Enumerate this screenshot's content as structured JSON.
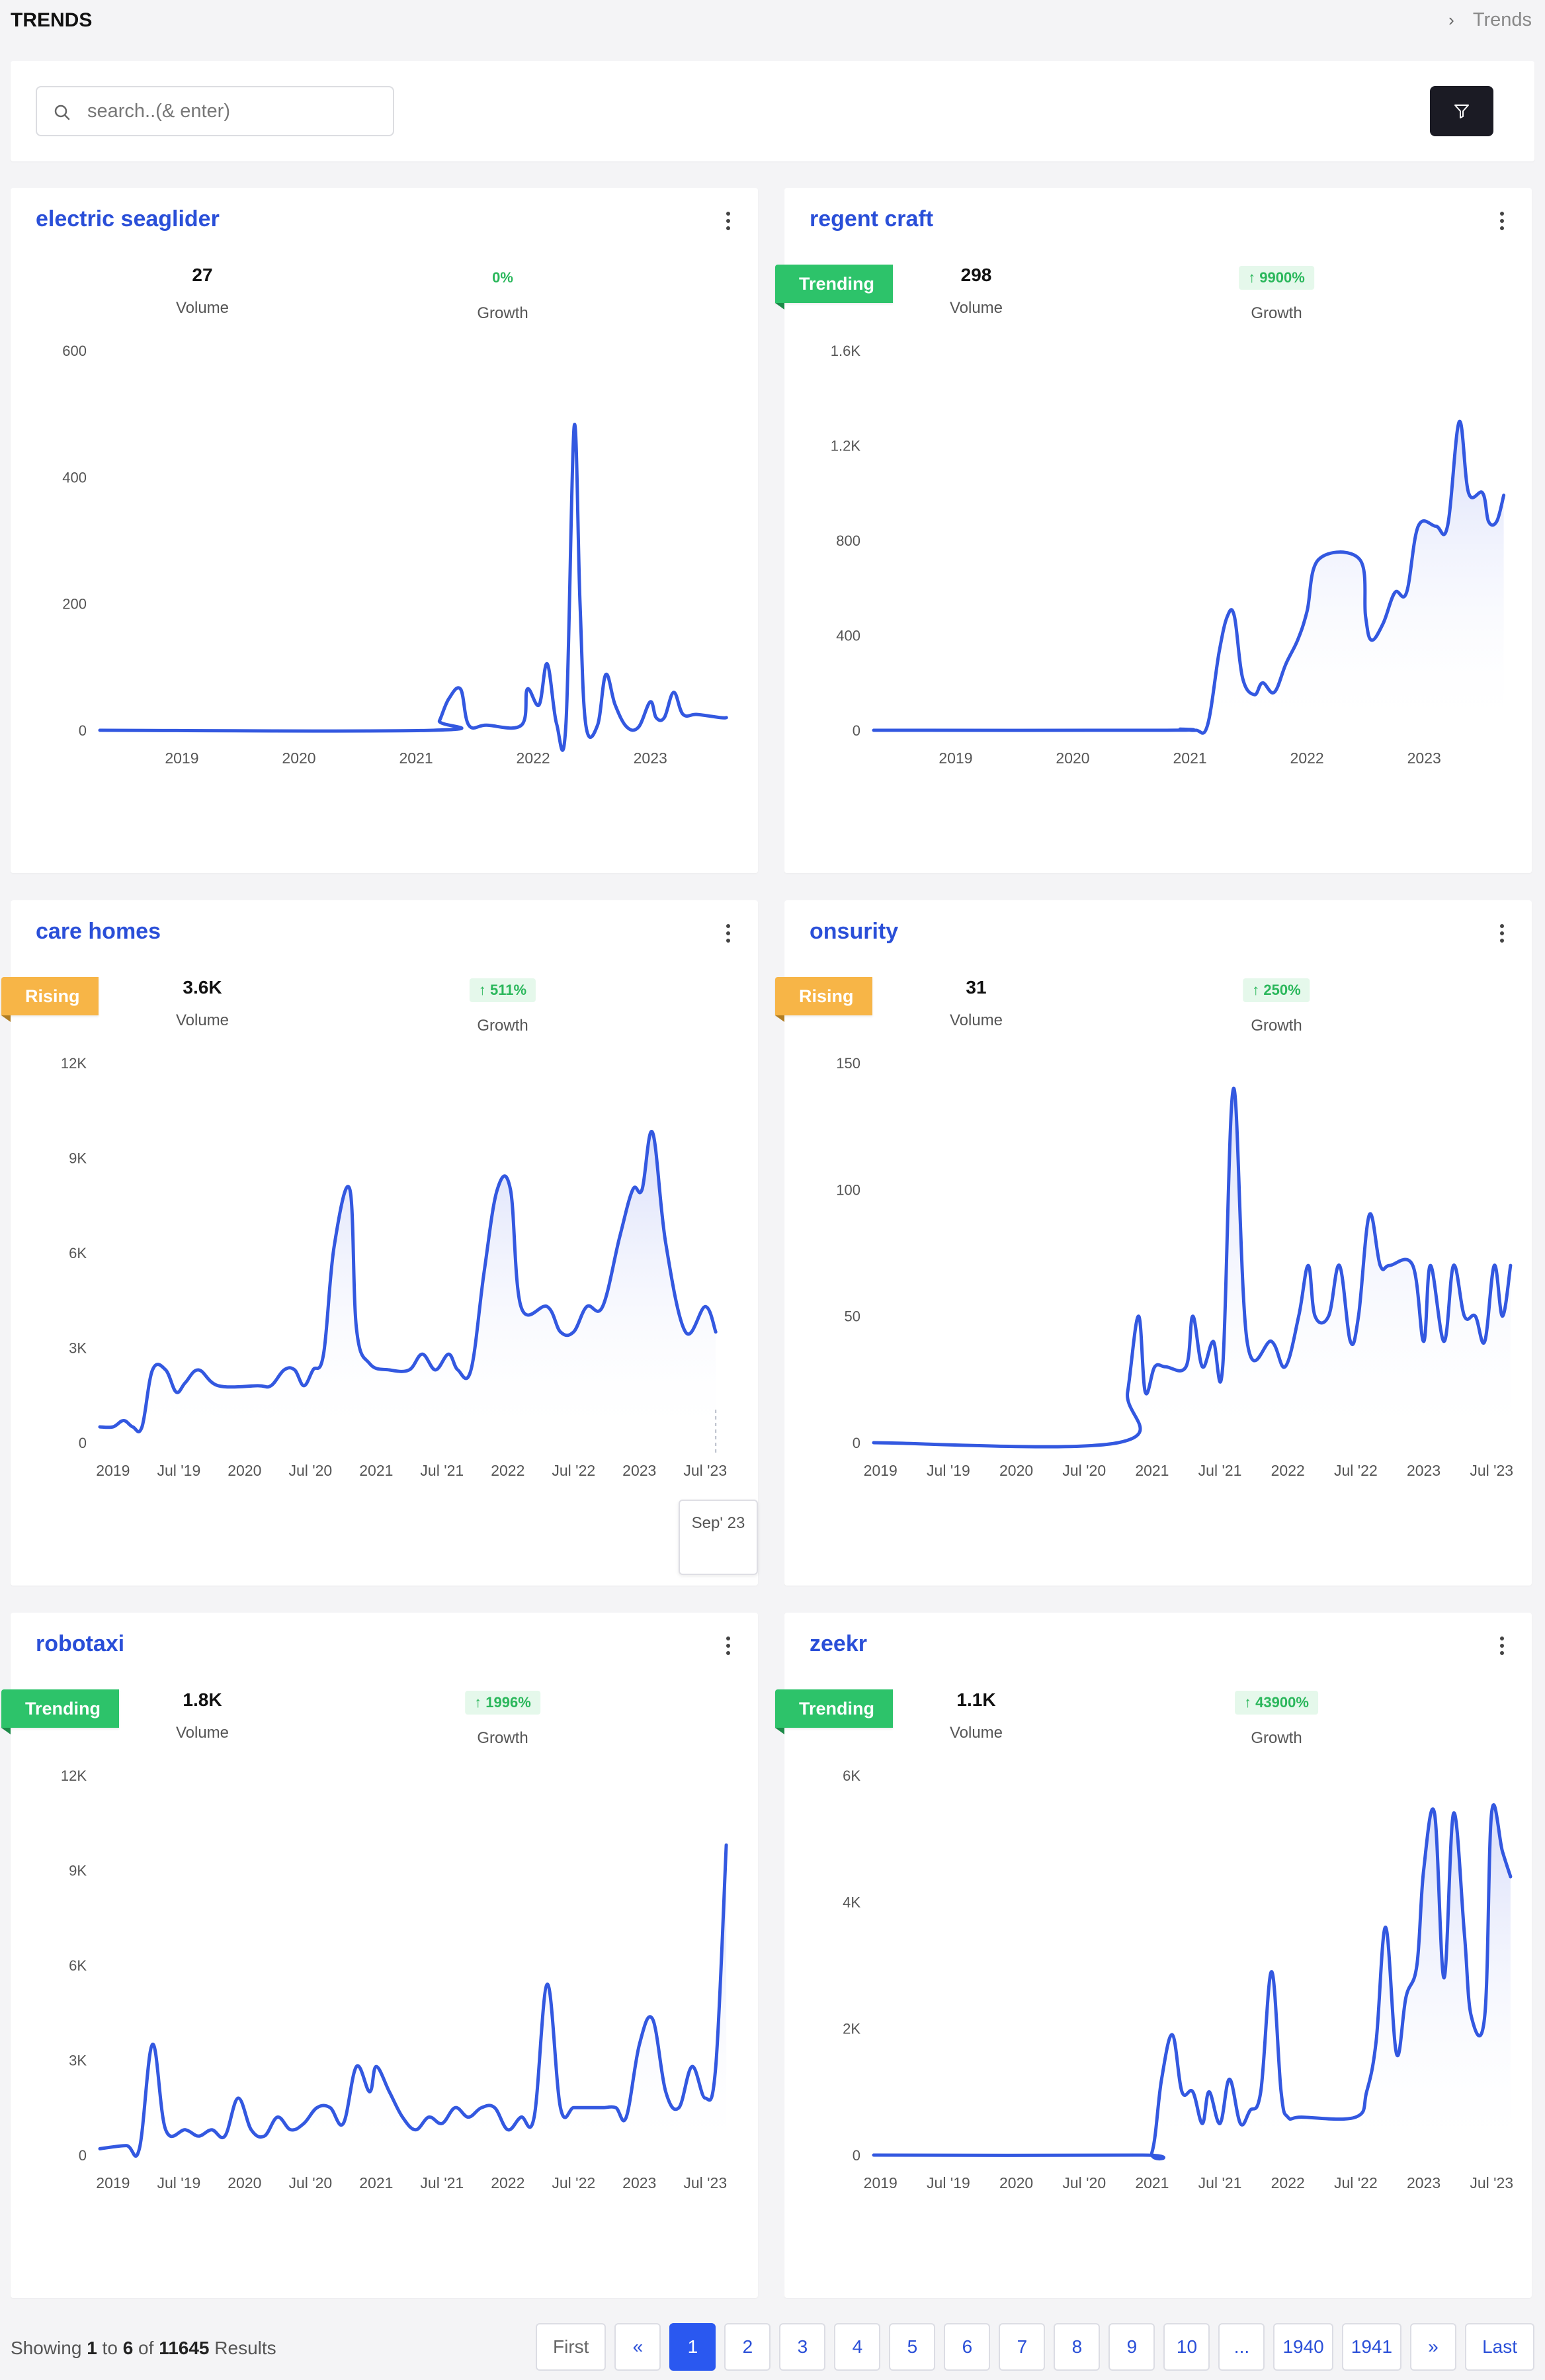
{
  "header": {
    "title": "TRENDS",
    "breadcrumb": "Trends"
  },
  "search": {
    "placeholder": "search..(& enter)",
    "value": ""
  },
  "cards": [
    {
      "title": "electric seaglider",
      "badge": "",
      "volume": "27",
      "volume_label": "Volume",
      "growth": "0%",
      "growth_pill": false,
      "growth_label": "Growth",
      "chart_data": {
        "type": "line",
        "ylim": [
          0,
          600
        ],
        "y_ticks": [
          0,
          200,
          400,
          600
        ],
        "y_tick_labels": [
          "0",
          "200",
          "400",
          "600"
        ],
        "xlim": [
          2018.3,
          2023.75
        ],
        "x_ticks": [
          2019,
          2020,
          2021,
          2022,
          2023
        ],
        "x_tick_labels": [
          "2019",
          "2020",
          "2021",
          "2022",
          "2023"
        ],
        "area": false,
        "x": [
          2018.3,
          2021.15,
          2021.2,
          2021.28,
          2021.38,
          2021.45,
          2021.6,
          2021.9,
          2021.95,
          2022.05,
          2022.12,
          2022.2,
          2022.28,
          2022.35,
          2022.4,
          2022.45,
          2022.55,
          2022.62,
          2022.7,
          2022.8,
          2022.9,
          2023.0,
          2023.05,
          2023.12,
          2023.2,
          2023.28,
          2023.4,
          2023.6,
          2023.65
        ],
        "y": [
          0,
          0,
          15,
          50,
          65,
          8,
          8,
          8,
          65,
          40,
          105,
          10,
          10,
          480,
          200,
          8,
          8,
          88,
          40,
          5,
          5,
          45,
          20,
          20,
          60,
          25,
          25,
          20,
          20
        ]
      }
    },
    {
      "title": "regent craft",
      "badge": "Trending",
      "volume": "298",
      "volume_label": "Volume",
      "growth": "↑ 9900%",
      "growth_pill": true,
      "growth_label": "Growth",
      "chart_data": {
        "type": "line",
        "ylim": [
          0,
          1600
        ],
        "y_ticks": [
          0,
          400,
          800,
          1200,
          1600
        ],
        "y_tick_labels": [
          "0",
          "400",
          "800",
          "1.2K",
          "1.6K"
        ],
        "xlim": [
          2018.3,
          2023.75
        ],
        "x_ticks": [
          2019,
          2020,
          2021,
          2022,
          2023
        ],
        "x_tick_labels": [
          "2019",
          "2020",
          "2021",
          "2022",
          "2023"
        ],
        "area": true,
        "x": [
          2018.3,
          2020.8,
          2020.92,
          2021.05,
          2021.15,
          2021.25,
          2021.32,
          2021.38,
          2021.45,
          2021.55,
          2021.62,
          2021.72,
          2021.82,
          2021.92,
          2022.0,
          2022.1,
          2022.45,
          2022.5,
          2022.55,
          2022.65,
          2022.75,
          2022.85,
          2022.95,
          2023.1,
          2023.2,
          2023.3,
          2023.38,
          2023.5,
          2023.55,
          2023.62,
          2023.68
        ],
        "y": [
          0,
          0,
          5,
          0,
          20,
          330,
          480,
          480,
          220,
          150,
          200,
          160,
          280,
          380,
          500,
          720,
          720,
          480,
          380,
          450,
          580,
          580,
          860,
          860,
          860,
          1300,
          1000,
          1000,
          880,
          880,
          990
        ]
      }
    },
    {
      "title": "care homes",
      "badge": "Rising",
      "volume": "3.6K",
      "volume_label": "Volume",
      "growth": "↑ 511%",
      "growth_pill": true,
      "growth_label": "Growth",
      "tooltip": "Sep' 23",
      "chart_data": {
        "type": "line",
        "ylim": [
          0,
          12000
        ],
        "y_ticks": [
          0,
          3000,
          6000,
          9000,
          12000
        ],
        "y_tick_labels": [
          "0",
          "3K",
          "6K",
          "9K",
          "12K"
        ],
        "xlim": [
          2018.9,
          2023.75
        ],
        "x_ticks": [
          2019,
          2019.5,
          2020,
          2020.5,
          2021,
          2021.5,
          2022,
          2022.5,
          2023,
          2023.5
        ],
        "x_tick_labels": [
          "2019",
          "Jul '19",
          "2020",
          "Jul '20",
          "2021",
          "Jul '21",
          "2022",
          "Jul '22",
          "2023",
          "Jul '23"
        ],
        "area": true,
        "x": [
          2018.9,
          2019.0,
          2019.08,
          2019.15,
          2019.22,
          2019.3,
          2019.4,
          2019.48,
          2019.55,
          2019.65,
          2019.8,
          2020.1,
          2020.2,
          2020.3,
          2020.38,
          2020.45,
          2020.52,
          2020.6,
          2020.68,
          2020.8,
          2020.85,
          2020.95,
          2021.1,
          2021.25,
          2021.35,
          2021.45,
          2021.55,
          2021.62,
          2021.72,
          2021.82,
          2021.92,
          2022.02,
          2022.1,
          2022.3,
          2022.4,
          2022.5,
          2022.6,
          2022.72,
          2022.85,
          2022.95,
          2023.02,
          2023.1,
          2023.2,
          2023.35,
          2023.5,
          2023.58
        ],
        "y": [
          500,
          500,
          700,
          500,
          500,
          2300,
          2300,
          1600,
          1900,
          2300,
          1800,
          1800,
          1800,
          2300,
          2300,
          1800,
          2300,
          2800,
          6200,
          8000,
          3600,
          2500,
          2300,
          2300,
          2800,
          2300,
          2800,
          2300,
          2300,
          5400,
          8000,
          8000,
          4300,
          4300,
          3500,
          3500,
          4300,
          4300,
          6500,
          8000,
          8000,
          9800,
          6300,
          3500,
          4300,
          3500
        ]
      }
    },
    {
      "title": "onsurity",
      "badge": "Rising",
      "volume": "31",
      "volume_label": "Volume",
      "growth": "↑ 250%",
      "growth_pill": true,
      "growth_label": "Growth",
      "chart_data": {
        "type": "line",
        "ylim": [
          0,
          150
        ],
        "y_ticks": [
          0,
          50,
          100,
          150
        ],
        "y_tick_labels": [
          "0",
          "50",
          "100",
          "150"
        ],
        "xlim": [
          2018.95,
          2023.65
        ],
        "x_ticks": [
          2019,
          2019.5,
          2020,
          2020.5,
          2021,
          2021.5,
          2022,
          2022.5,
          2023,
          2023.5
        ],
        "x_tick_labels": [
          "2019",
          "Jul '19",
          "2020",
          "Jul '20",
          "2021",
          "Jul '21",
          "2022",
          "Jul '22",
          "2023",
          "Jul '23"
        ],
        "area": true,
        "x": [
          2018.95,
          2020.75,
          2020.82,
          2020.9,
          2020.95,
          2021.02,
          2021.1,
          2021.25,
          2021.3,
          2021.37,
          2021.45,
          2021.52,
          2021.6,
          2021.7,
          2021.88,
          2021.98,
          2022.08,
          2022.15,
          2022.2,
          2022.3,
          2022.38,
          2022.46,
          2022.52,
          2022.6,
          2022.68,
          2022.75,
          2022.92,
          2023.0,
          2023.05,
          2023.15,
          2023.22,
          2023.3,
          2023.38,
          2023.45,
          2023.52,
          2023.58,
          2023.64
        ],
        "y": [
          0,
          0,
          20,
          50,
          20,
          30,
          30,
          30,
          50,
          30,
          40,
          30,
          140,
          40,
          40,
          30,
          50,
          70,
          50,
          50,
          70,
          40,
          50,
          90,
          70,
          70,
          70,
          40,
          70,
          40,
          70,
          50,
          50,
          40,
          70,
          50,
          70
        ]
      }
    },
    {
      "title": "robotaxi",
      "badge": "Trending",
      "volume": "1.8K",
      "volume_label": "Volume",
      "growth": "↑ 1996%",
      "growth_pill": true,
      "growth_label": "Growth",
      "chart_data": {
        "type": "line",
        "ylim": [
          0,
          12000
        ],
        "y_ticks": [
          0,
          3000,
          6000,
          9000,
          12000
        ],
        "y_tick_labels": [
          "0",
          "3K",
          "6K",
          "9K",
          "12K"
        ],
        "xlim": [
          2018.9,
          2023.75
        ],
        "x_ticks": [
          2019,
          2019.5,
          2020,
          2020.5,
          2021,
          2021.5,
          2022,
          2022.5,
          2023,
          2023.5
        ],
        "x_tick_labels": [
          "2019",
          "Jul '19",
          "2020",
          "Jul '20",
          "2021",
          "Jul '21",
          "2022",
          "Jul '22",
          "2023",
          "Jul '23"
        ],
        "area": true,
        "x": [
          2018.9,
          2019.1,
          2019.2,
          2019.3,
          2019.4,
          2019.55,
          2019.65,
          2019.75,
          2019.85,
          2019.95,
          2020.05,
          2020.15,
          2020.25,
          2020.35,
          2020.45,
          2020.55,
          2020.65,
          2020.75,
          2020.85,
          2020.95,
          2021.0,
          2021.1,
          2021.2,
          2021.3,
          2021.4,
          2021.5,
          2021.6,
          2021.7,
          2021.8,
          2021.9,
          2022.0,
          2022.1,
          2022.2,
          2022.3,
          2022.4,
          2022.5,
          2022.6,
          2022.72,
          2022.82,
          2022.9,
          2023.0,
          2023.1,
          2023.2,
          2023.3,
          2023.4,
          2023.5,
          2023.58,
          2023.66
        ],
        "y": [
          200,
          300,
          200,
          3500,
          800,
          800,
          600,
          800,
          600,
          1800,
          800,
          600,
          1200,
          800,
          1000,
          1500,
          1500,
          1000,
          2800,
          2000,
          2800,
          2000,
          1200,
          800,
          1200,
          1000,
          1500,
          1200,
          1500,
          1500,
          800,
          1200,
          1200,
          5400,
          1500,
          1500,
          1500,
          1500,
          1500,
          1200,
          3500,
          4300,
          2000,
          1500,
          2800,
          1800,
          2800,
          9800
        ]
      }
    },
    {
      "title": "zeekr",
      "badge": "Trending",
      "volume": "1.1K",
      "volume_label": "Volume",
      "growth": "↑ 43900%",
      "growth_pill": true,
      "growth_label": "Growth",
      "chart_data": {
        "type": "line",
        "ylim": [
          0,
          6000
        ],
        "y_ticks": [
          0,
          2000,
          4000,
          6000
        ],
        "y_tick_labels": [
          "0",
          "2K",
          "4K",
          "6K"
        ],
        "xlim": [
          2018.95,
          2023.65
        ],
        "x_ticks": [
          2019,
          2019.5,
          2020,
          2020.5,
          2021,
          2021.5,
          2022,
          2022.5,
          2023,
          2023.5
        ],
        "x_tick_labels": [
          "2019",
          "Jul '19",
          "2020",
          "Jul '20",
          "2021",
          "Jul '21",
          "2022",
          "Jul '22",
          "2023",
          "Jul '23"
        ],
        "area": true,
        "x": [
          2018.95,
          2020.9,
          2021.0,
          2021.07,
          2021.15,
          2021.22,
          2021.3,
          2021.37,
          2021.42,
          2021.5,
          2021.57,
          2021.65,
          2021.72,
          2021.8,
          2021.88,
          2021.95,
          2022.0,
          2022.1,
          2022.5,
          2022.58,
          2022.65,
          2022.72,
          2022.8,
          2022.87,
          2022.95,
          2023.0,
          2023.08,
          2023.15,
          2023.22,
          2023.3,
          2023.35,
          2023.45,
          2023.5,
          2023.58,
          2023.64
        ],
        "y": [
          0,
          0,
          50,
          1200,
          1900,
          1000,
          1000,
          500,
          1000,
          500,
          1200,
          500,
          700,
          1000,
          2900,
          1000,
          600,
          600,
          600,
          1000,
          1800,
          3600,
          1600,
          2500,
          3000,
          4500,
          5400,
          2800,
          5400,
          3500,
          2200,
          2200,
          5400,
          4800,
          4400
        ]
      }
    }
  ],
  "pagination": {
    "showing_prefix": "Showing",
    "from": "1",
    "to_word": "to",
    "to": "6",
    "of_word": "of",
    "total": "11645",
    "results_word": "Results",
    "first": "First",
    "prev": "«",
    "next": "»",
    "last": "Last",
    "pages": [
      "1",
      "2",
      "3",
      "4",
      "5",
      "6",
      "7",
      "8",
      "9",
      "10",
      "...",
      "1940",
      "1941"
    ],
    "current": "1"
  },
  "colors": {
    "line": "#3358e0",
    "accent": "#2a4fd8",
    "trending": "#2dc36a",
    "rising": "#f7b547",
    "growth": "#2ab75b"
  }
}
